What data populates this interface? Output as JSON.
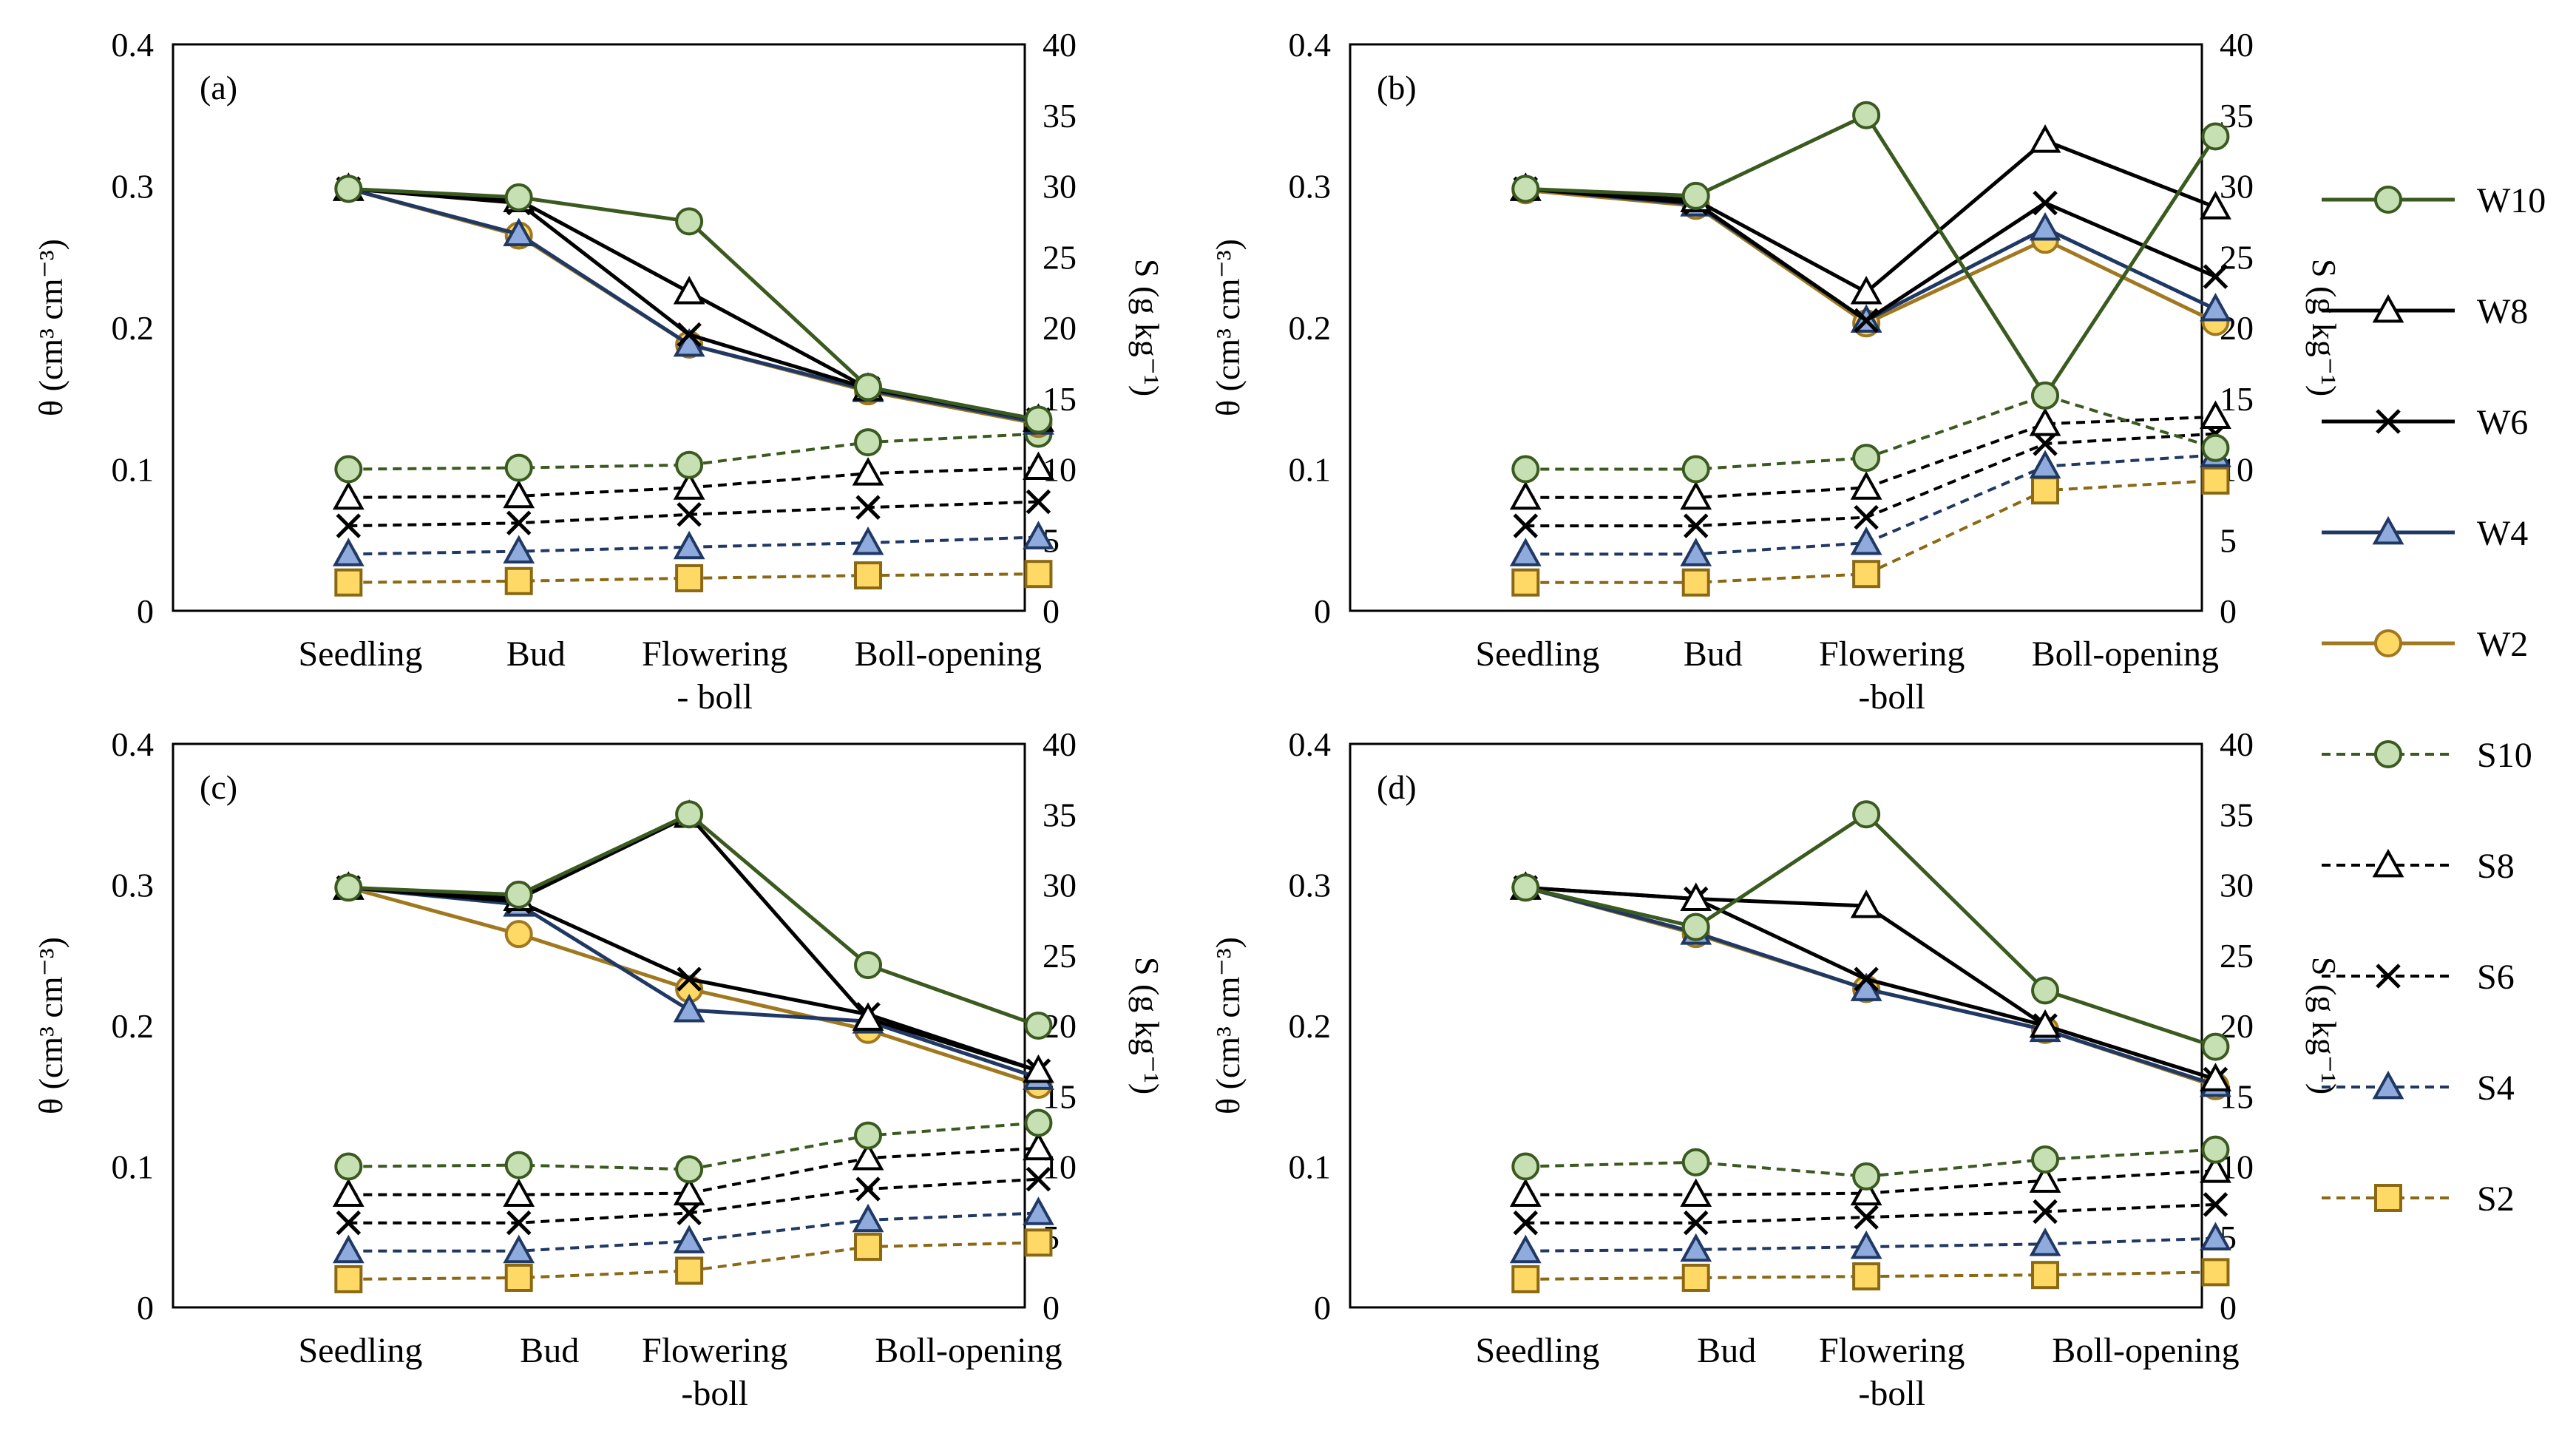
{
  "figure_caption": "",
  "legend": [
    {
      "label": "W10",
      "key": "W10"
    },
    {
      "label": "W8",
      "key": "W8"
    },
    {
      "label": "W6",
      "key": "W6"
    },
    {
      "label": "W4",
      "key": "W4"
    },
    {
      "label": "W2",
      "key": "W2"
    },
    {
      "label": "S10",
      "key": "S10"
    },
    {
      "label": "S8",
      "key": "S8"
    },
    {
      "label": "S6",
      "key": "S6"
    },
    {
      "label": "S4",
      "key": "S4"
    },
    {
      "label": "S2",
      "key": "S2"
    }
  ],
  "styles": {
    "W10": {
      "color": "#3a5a1f",
      "fill": "#c6e0b4",
      "marker": "circle",
      "dash": false
    },
    "W8": {
      "color": "#000000",
      "fill": "#ffffff",
      "marker": "triangle",
      "dash": false
    },
    "W6": {
      "color": "#000000",
      "fill": "none",
      "marker": "x",
      "dash": false
    },
    "W4": {
      "color": "#1f3864",
      "fill": "#8faadc",
      "marker": "triangle",
      "dash": false
    },
    "W2": {
      "color": "#a07820",
      "fill": "#ffd966",
      "marker": "circle",
      "dash": false
    },
    "S10": {
      "color": "#3a5a1f",
      "fill": "#c6e0b4",
      "marker": "circle",
      "dash": true
    },
    "S8": {
      "color": "#000000",
      "fill": "#ffffff",
      "marker": "triangle",
      "dash": true
    },
    "S6": {
      "color": "#000000",
      "fill": "none",
      "marker": "x",
      "dash": true
    },
    "S4": {
      "color": "#1f3864",
      "fill": "#8faadc",
      "marker": "triangle",
      "dash": true
    },
    "S2": {
      "color": "#8b6914",
      "fill": "#ffd966",
      "marker": "square",
      "dash": true
    }
  },
  "chart_data": [
    {
      "type": "line",
      "panel_label": "(a)",
      "y_left_label": "θ (cm³ cm⁻³)",
      "y_right_label": "S (g kg⁻¹)",
      "y_left_ticks": [
        "0",
        "0.1",
        "0.2",
        "0.3",
        "0.4"
      ],
      "y_right_ticks": [
        "0",
        "5",
        "10",
        "15",
        "20",
        "25",
        "30",
        "35",
        "40"
      ],
      "ylim_left": [
        0,
        0.4
      ],
      "ylim_right": [
        0,
        40
      ],
      "category_labels": [
        [
          "Seedling"
        ],
        [
          "Bud"
        ],
        [
          "Flowering",
          "- boll"
        ],
        [
          "Boll-opening"
        ]
      ],
      "x_positions": [
        1,
        2,
        3,
        4,
        5
      ],
      "series": [
        {
          "name": "W10",
          "values": [
            0.298,
            0.292,
            0.275,
            0.158,
            0.135
          ]
        },
        {
          "name": "W8",
          "values": [
            0.298,
            0.29,
            0.225,
            0.157,
            0.135
          ]
        },
        {
          "name": "W6",
          "values": [
            0.298,
            0.288,
            0.195,
            0.157,
            0.135
          ]
        },
        {
          "name": "W4",
          "values": [
            0.298,
            0.266,
            0.188,
            0.156,
            0.133
          ]
        },
        {
          "name": "W2",
          "values": [
            0.298,
            0.265,
            0.188,
            0.155,
            0.132
          ]
        },
        {
          "name": "S10",
          "values": [
            0.1,
            0.101,
            0.103,
            0.119,
            0.125
          ]
        },
        {
          "name": "S8",
          "values": [
            0.08,
            0.081,
            0.087,
            0.097,
            0.101
          ]
        },
        {
          "name": "S6",
          "values": [
            0.06,
            0.062,
            0.068,
            0.073,
            0.077
          ]
        },
        {
          "name": "S4",
          "values": [
            0.04,
            0.042,
            0.045,
            0.048,
            0.052
          ]
        },
        {
          "name": "S2",
          "values": [
            0.02,
            0.021,
            0.023,
            0.025,
            0.026
          ]
        }
      ]
    },
    {
      "type": "line",
      "panel_label": "(b)",
      "y_left_label": "θ (cm³ cm⁻³)",
      "y_right_label": "S (g kg⁻¹)",
      "y_left_ticks": [
        "0",
        "0.1",
        "0.2",
        "0.3",
        "0.4"
      ],
      "y_right_ticks": [
        "0",
        "5",
        "10",
        "15",
        "20",
        "25",
        "30",
        "35",
        "40"
      ],
      "ylim_left": [
        0,
        0.4
      ],
      "ylim_right": [
        0,
        40
      ],
      "category_labels": [
        [
          "Seedling"
        ],
        [
          "Bud"
        ],
        [
          "Flowering",
          "-boll"
        ],
        [
          "Boll-opening"
        ]
      ],
      "x_positions": [
        1,
        2,
        3,
        4,
        5
      ],
      "series": [
        {
          "name": "W10",
          "values": [
            0.298,
            0.293,
            0.35,
            0.152,
            0.335
          ]
        },
        {
          "name": "W8",
          "values": [
            0.298,
            0.29,
            0.225,
            0.332,
            0.285
          ]
        },
        {
          "name": "W6",
          "values": [
            0.298,
            0.288,
            0.205,
            0.288,
            0.236
          ]
        },
        {
          "name": "W4",
          "values": [
            0.298,
            0.287,
            0.205,
            0.27,
            0.213
          ]
        },
        {
          "name": "W2",
          "values": [
            0.297,
            0.286,
            0.203,
            0.262,
            0.204
          ]
        },
        {
          "name": "S10",
          "values": [
            0.1,
            0.1,
            0.108,
            0.152,
            0.115
          ]
        },
        {
          "name": "S8",
          "values": [
            0.08,
            0.08,
            0.087,
            0.132,
            0.137
          ]
        },
        {
          "name": "S6",
          "values": [
            0.06,
            0.06,
            0.066,
            0.118,
            0.125
          ]
        },
        {
          "name": "S4",
          "values": [
            0.04,
            0.04,
            0.048,
            0.102,
            0.11
          ]
        },
        {
          "name": "S2",
          "values": [
            0.02,
            0.02,
            0.026,
            0.085,
            0.092
          ]
        }
      ]
    },
    {
      "type": "line",
      "panel_label": "(c)",
      "y_left_label": "θ (cm³ cm⁻³)",
      "y_right_label": "S (g kg⁻¹)",
      "y_left_ticks": [
        "0",
        "0.1",
        "0.2",
        "0.3",
        "0.4"
      ],
      "y_right_ticks": [
        "0",
        "5",
        "10",
        "15",
        "20",
        "25",
        "30",
        "35",
        "40"
      ],
      "ylim_left": [
        0,
        0.4
      ],
      "ylim_right": [
        0,
        40
      ],
      "category_labels": [
        [
          "Seedling"
        ],
        [
          "Bud"
        ],
        [
          "Flowering",
          "-boll"
        ],
        [
          "Boll-opening"
        ]
      ],
      "x_positions": [
        1,
        2,
        3,
        4,
        5
      ],
      "series": [
        {
          "name": "W10",
          "values": [
            0.298,
            0.293,
            0.35,
            0.243,
            0.2
          ]
        },
        {
          "name": "W8",
          "values": [
            0.298,
            0.29,
            0.349,
            0.205,
            0.168
          ]
        },
        {
          "name": "W6",
          "values": [
            0.298,
            0.288,
            0.233,
            0.208,
            0.168
          ]
        },
        {
          "name": "W4",
          "values": [
            0.298,
            0.286,
            0.211,
            0.203,
            0.163
          ]
        },
        {
          "name": "W2",
          "values": [
            0.298,
            0.265,
            0.226,
            0.197,
            0.158
          ]
        },
        {
          "name": "S10",
          "values": [
            0.1,
            0.101,
            0.098,
            0.122,
            0.131
          ]
        },
        {
          "name": "S8",
          "values": [
            0.08,
            0.08,
            0.081,
            0.106,
            0.113
          ]
        },
        {
          "name": "S6",
          "values": [
            0.06,
            0.06,
            0.067,
            0.084,
            0.091
          ]
        },
        {
          "name": "S4",
          "values": [
            0.04,
            0.04,
            0.047,
            0.062,
            0.067
          ]
        },
        {
          "name": "S2",
          "values": [
            0.02,
            0.021,
            0.026,
            0.043,
            0.046
          ]
        }
      ]
    },
    {
      "type": "line",
      "panel_label": "(d)",
      "y_left_label": "θ (cm³ cm⁻³)",
      "y_right_label": "S (g kg⁻¹)",
      "y_left_ticks": [
        "0",
        "0.1",
        "0.2",
        "0.3",
        "0.4"
      ],
      "y_right_ticks": [
        "0",
        "5",
        "10",
        "15",
        "20",
        "25",
        "30",
        "35",
        "40"
      ],
      "ylim_left": [
        0,
        0.4
      ],
      "ylim_right": [
        0,
        40
      ],
      "category_labels": [
        [
          "Seedling"
        ],
        [
          "Bud"
        ],
        [
          "Flowering",
          "-boll"
        ],
        [
          "Boll-opening"
        ]
      ],
      "x_positions": [
        1,
        2,
        3,
        4,
        5
      ],
      "series": [
        {
          "name": "W10",
          "values": [
            0.298,
            0.27,
            0.35,
            0.225,
            0.185
          ]
        },
        {
          "name": "W8",
          "values": [
            0.298,
            0.29,
            0.285,
            0.2,
            0.162
          ]
        },
        {
          "name": "W6",
          "values": [
            0.298,
            0.29,
            0.233,
            0.2,
            0.162
          ]
        },
        {
          "name": "W4",
          "values": [
            0.298,
            0.266,
            0.226,
            0.197,
            0.158
          ]
        },
        {
          "name": "W2",
          "values": [
            0.298,
            0.265,
            0.226,
            0.197,
            0.157
          ]
        },
        {
          "name": "S10",
          "values": [
            0.1,
            0.103,
            0.093,
            0.105,
            0.112
          ]
        },
        {
          "name": "S8",
          "values": [
            0.08,
            0.08,
            0.081,
            0.09,
            0.097
          ]
        },
        {
          "name": "S6",
          "values": [
            0.06,
            0.06,
            0.064,
            0.068,
            0.073
          ]
        },
        {
          "name": "S4",
          "values": [
            0.04,
            0.041,
            0.043,
            0.045,
            0.049
          ]
        },
        {
          "name": "S2",
          "values": [
            0.02,
            0.021,
            0.022,
            0.023,
            0.025
          ]
        }
      ]
    }
  ]
}
